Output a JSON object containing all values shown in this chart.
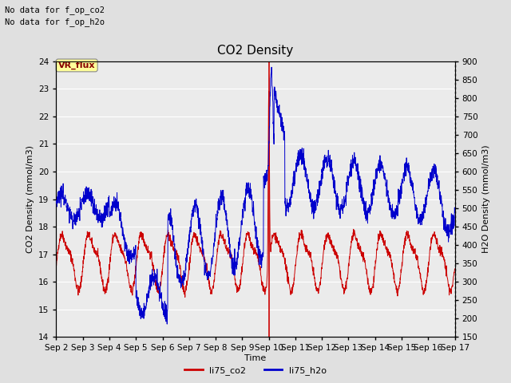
{
  "title": "CO2 Density",
  "xlabel": "Time",
  "ylabel_left": "CO2 Density (mmol/m3)",
  "ylabel_right": "H2O Density (mmol/m3)",
  "top_text": [
    "No data for f_op_co2",
    "No data for f_op_h2o"
  ],
  "vr_flux_label": "VR_flux",
  "ylim_left": [
    14.0,
    24.0
  ],
  "ylim_right": [
    150,
    900
  ],
  "yticks_left": [
    14.0,
    15.0,
    16.0,
    17.0,
    18.0,
    19.0,
    20.0,
    21.0,
    22.0,
    23.0,
    24.0
  ],
  "yticks_right": [
    150,
    200,
    250,
    300,
    350,
    400,
    450,
    500,
    550,
    600,
    650,
    700,
    750,
    800,
    850,
    900
  ],
  "xtick_labels": [
    "Sep 2",
    "Sep 3",
    "Sep 4",
    "Sep 5",
    "Sep 6",
    "Sep 7",
    "Sep 8",
    "Sep 9",
    "Sep 10",
    "Sep 11",
    "Sep 12",
    "Sep 13",
    "Sep 14",
    "Sep 15",
    "Sep 16",
    "Sep 17"
  ],
  "legend_entries": [
    "li75_co2",
    "li75_h2o"
  ],
  "legend_colors": [
    "#cc0000",
    "#0000cc"
  ],
  "co2_color": "#cc0000",
  "h2o_color": "#0000cc",
  "vline_color": "#cc0000",
  "bg_color": "#e0e0e0",
  "plot_bg_color": "#ebebeb",
  "vr_flux_bg": "#ffff99",
  "vr_flux_text_color": "#880000",
  "grid_color": "#ffffff",
  "title_fontsize": 11,
  "label_fontsize": 8,
  "tick_fontsize": 7.5,
  "annotation_fontsize": 7.5,
  "legend_fontsize": 8
}
